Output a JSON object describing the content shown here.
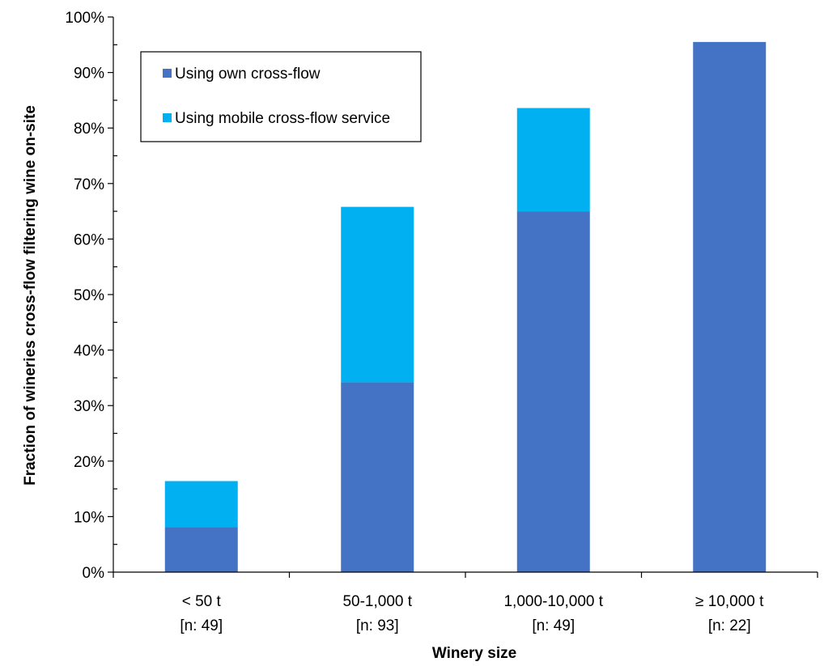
{
  "chart_data": {
    "type": "bar",
    "stacked": true,
    "categories": [
      "< 50 t",
      "50-1,000 t",
      "1,000-10,000 t",
      "≥ 10,000 t"
    ],
    "category_sublabels": [
      "[n: 49]",
      "[n: 93]",
      "[n: 49]",
      "[n: 22]"
    ],
    "series": [
      {
        "name": "Using own cross-flow",
        "color": "#4472C4",
        "values": [
          8.1,
          34.2,
          65.0,
          95.5
        ]
      },
      {
        "name": "Using mobile cross-flow service",
        "color": "#00B0F0",
        "values": [
          8.3,
          31.6,
          18.6,
          0
        ]
      }
    ],
    "xlabel": "Winery size",
    "ylabel": "Fraction of wineries cross-flow filtering wine on-site",
    "ylim": [
      0,
      100
    ],
    "yticks": [
      0,
      10,
      20,
      30,
      40,
      50,
      60,
      70,
      80,
      90,
      100
    ],
    "y_tick_suffix": "%",
    "grid": false,
    "legend_position": "top-left"
  }
}
